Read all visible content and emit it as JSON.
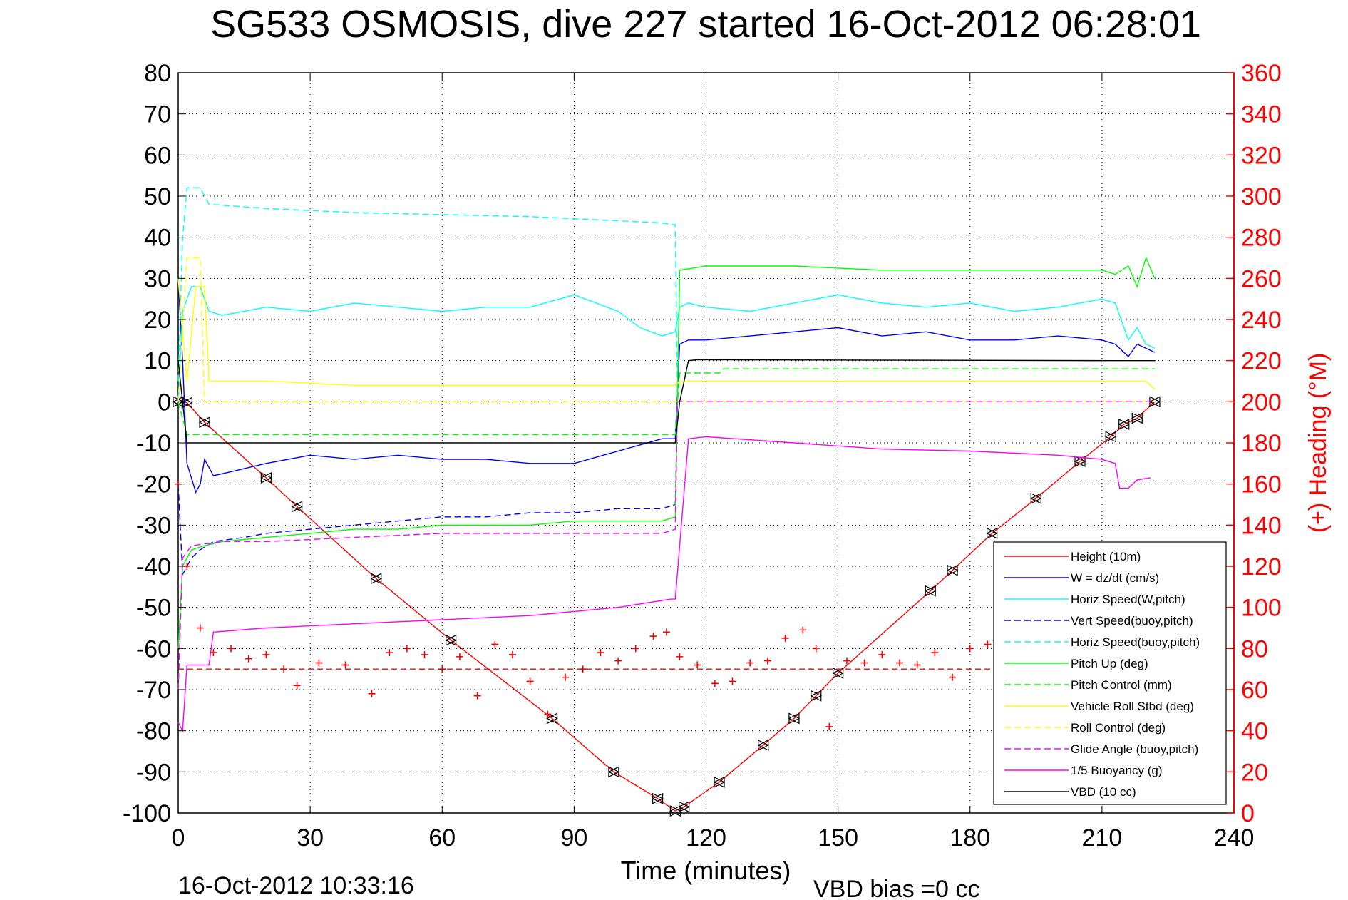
{
  "chart_data": {
    "type": "line",
    "title": "SG533 OSMOSIS, dive 227 started 16-Oct-2012 06:28:01",
    "xlabel": "Time (minutes)",
    "ylabel": "",
    "y2label": "(+) Heading (°M)",
    "timestamp": "16-Oct-2012 10:33:16",
    "footer_note": "VBD bias =0 cc",
    "xlim": [
      0,
      240
    ],
    "ylim": [
      -100,
      80
    ],
    "y2lim": [
      0,
      360
    ],
    "grid": true,
    "legend_position": "bottom-right",
    "x_ticks": [
      0,
      30,
      60,
      90,
      120,
      150,
      180,
      210,
      240
    ],
    "y_ticks": [
      80,
      70,
      60,
      50,
      40,
      30,
      20,
      10,
      0,
      -10,
      -20,
      -30,
      -40,
      -50,
      -60,
      -70,
      -80,
      -90,
      -100
    ],
    "y2_ticks": [
      360,
      340,
      320,
      300,
      280,
      260,
      240,
      220,
      200,
      180,
      160,
      140,
      120,
      100,
      80,
      60,
      40,
      20,
      0
    ],
    "series": [
      {
        "name": "Height (10m)",
        "color": "#ff0000",
        "style": "solid",
        "marker": "triangle",
        "x": [
          0,
          2,
          6,
          20,
          27,
          45,
          62,
          85,
          99,
          109,
          113,
          115,
          123,
          133,
          140,
          145,
          150,
          171,
          176,
          185,
          195,
          205,
          212,
          215,
          218,
          222
        ],
        "y": [
          0,
          -0.2,
          -5,
          -18.5,
          -25.5,
          -43,
          -58,
          -77,
          -90,
          -96.5,
          -99.5,
          -98.5,
          -92.5,
          -83.5,
          -77,
          -71.5,
          -66,
          -46,
          -41,
          -32,
          -23.5,
          -14.5,
          -8.5,
          -5.5,
          -4,
          0
        ]
      },
      {
        "name": "W = dz/dt (cm/s)",
        "color": "#0000ff",
        "style": "solid",
        "x": [
          0,
          1,
          2,
          4,
          5,
          6,
          8,
          12,
          20,
          30,
          40,
          50,
          60,
          70,
          80,
          90,
          100,
          110,
          113,
          114,
          116,
          120,
          130,
          140,
          150,
          160,
          170,
          180,
          190,
          200,
          210,
          213,
          216,
          218,
          220,
          222
        ],
        "y": [
          30,
          10,
          -15,
          -22,
          -20,
          -14,
          -18,
          -17,
          -15,
          -13,
          -14,
          -13,
          -14,
          -14,
          -15,
          -15,
          -12,
          -9,
          -9,
          14,
          15,
          15,
          16,
          17,
          18,
          16,
          17,
          15,
          15,
          16,
          15,
          14,
          11,
          14,
          13,
          12
        ]
      },
      {
        "name": "Horiz Speed(W,pitch)",
        "color": "#00ffff",
        "style": "solid",
        "x": [
          0,
          1,
          3,
          5,
          7,
          10,
          20,
          30,
          40,
          50,
          60,
          70,
          80,
          90,
          100,
          105,
          110,
          113,
          114,
          116,
          120,
          130,
          140,
          150,
          160,
          170,
          180,
          190,
          200,
          210,
          213,
          216,
          218,
          220,
          222
        ],
        "y": [
          0,
          22,
          28,
          28,
          22,
          21,
          23,
          22,
          24,
          23,
          22,
          23,
          23,
          26,
          22,
          18,
          16,
          17,
          23,
          24,
          23,
          22,
          24,
          26,
          24,
          23,
          24,
          22,
          23,
          25,
          24,
          15,
          18,
          14,
          13
        ]
      },
      {
        "name": "Vert Speed(buoy,pitch)",
        "color": "#0000ff",
        "style": "dashed",
        "x": [
          0,
          1,
          3,
          5,
          8,
          15,
          20,
          30,
          40,
          50,
          60,
          70,
          80,
          90,
          100,
          110,
          113,
          113.5
        ],
        "y": [
          -20,
          -42,
          -38,
          -36,
          -34,
          -33,
          -32,
          -31,
          -30,
          -29,
          -28,
          -28,
          -27,
          -27,
          -26,
          -26,
          -25,
          0
        ]
      },
      {
        "name": "Horiz Speed(buoy,pitch)",
        "color": "#00ffff",
        "style": "dashed",
        "x": [
          0,
          1,
          2,
          5,
          6,
          7,
          20,
          40,
          60,
          80,
          100,
          110,
          113,
          113.5
        ],
        "y": [
          5,
          40,
          52,
          52,
          50,
          48,
          47,
          46,
          45.5,
          45,
          44,
          43.5,
          43,
          0
        ]
      },
      {
        "name": "Pitch Up (deg)",
        "color": "#00ff00",
        "style": "solid",
        "x": [
          0,
          1,
          3,
          6,
          10,
          20,
          30,
          40,
          50,
          60,
          70,
          80,
          90,
          100,
          110,
          113,
          114,
          120,
          130,
          140,
          150,
          160,
          170,
          180,
          190,
          200,
          210,
          213,
          216,
          218,
          220,
          222
        ],
        "y": [
          -60,
          -40,
          -36,
          -35,
          -34,
          -33,
          -32,
          -31,
          -31,
          -30,
          -30,
          -30,
          -29,
          -29,
          -29,
          -28,
          32,
          33,
          33,
          33,
          32.5,
          32,
          32,
          32,
          32,
          32,
          32,
          31,
          33,
          28,
          35,
          30
        ]
      },
      {
        "name": "Pitch Control (mm)",
        "color": "#00ff00",
        "style": "dashed",
        "x": [
          0,
          2,
          113,
          114,
          123,
          124,
          222
        ],
        "y": [
          0,
          -8,
          -8,
          7,
          7,
          8,
          8
        ]
      },
      {
        "name": "Vehicle Roll Stbd (deg)",
        "color": "#ffff00",
        "style": "solid",
        "x": [
          0,
          2,
          4,
          6,
          7,
          20,
          40,
          60,
          80,
          100,
          110,
          113,
          114,
          120,
          140,
          160,
          180,
          200,
          210,
          213,
          216,
          220,
          222
        ],
        "y": [
          30,
          5,
          28,
          28,
          5,
          5,
          4,
          4,
          4,
          4,
          4,
          4,
          5,
          5,
          5,
          5,
          5,
          5,
          5,
          5,
          5,
          5,
          3
        ]
      },
      {
        "name": "Roll Control (deg)",
        "color": "#ffff00",
        "style": "dashed",
        "x": [
          0,
          2,
          5,
          6,
          114,
          222
        ],
        "y": [
          0,
          35,
          35,
          0,
          0,
          0
        ]
      },
      {
        "name": "Glide Angle (buoy,pitch)",
        "color": "#ff00ff",
        "style": "dashed",
        "x": [
          0,
          1,
          3,
          10,
          20,
          40,
          60,
          80,
          100,
          110,
          113,
          113.5,
          222
        ],
        "y": [
          -70,
          -38,
          -35,
          -34,
          -34,
          -33,
          -32,
          -32,
          -32,
          -32,
          -31,
          0,
          0
        ]
      },
      {
        "name": "1/5 Buoyancy (g)",
        "color": "#ff00ff",
        "style": "solid",
        "x": [
          0,
          1,
          2,
          7,
          8,
          20,
          40,
          60,
          80,
          100,
          112,
          113,
          116,
          120,
          140,
          160,
          180,
          200,
          210,
          213,
          214,
          216,
          218,
          221
        ],
        "y": [
          -78,
          -80,
          -64,
          -64,
          -56,
          -55,
          -54,
          -53,
          -52,
          -50,
          -48,
          -48,
          -9,
          -8.5,
          -10,
          -11.5,
          -12,
          -13,
          -14,
          -15,
          -21,
          -21,
          -19,
          -18.5
        ]
      },
      {
        "name": "VBD (10 cc)",
        "color": "#000000",
        "style": "solid",
        "x": [
          0,
          2,
          113,
          114,
          116,
          118,
          213,
          222
        ],
        "y": [
          10,
          -10,
          -10,
          0,
          10,
          10.2,
          10,
          10
        ]
      },
      {
        "name": "Heading (°M)",
        "color": "#ff0000",
        "style": "plus-markers",
        "axis": "right",
        "reference_line": 70,
        "x": [
          0,
          2,
          5,
          8,
          12,
          16,
          20,
          24,
          27,
          32,
          38,
          44,
          48,
          52,
          56,
          60,
          64,
          68,
          72,
          76,
          80,
          84,
          88,
          92,
          96,
          100,
          104,
          108,
          111,
          114,
          118,
          122,
          126,
          130,
          134,
          138,
          142,
          145,
          148,
          152,
          156,
          160,
          164,
          168,
          172,
          176,
          180,
          184,
          186
        ],
        "y": [
          160,
          120,
          90,
          78,
          80,
          75,
          77,
          70,
          62,
          73,
          72,
          58,
          78,
          80,
          77,
          70,
          76,
          57,
          82,
          77,
          64,
          48,
          66,
          70,
          78,
          74,
          80,
          86,
          88,
          76,
          72,
          63,
          64,
          73,
          74,
          85,
          89,
          80,
          42,
          74,
          73,
          77,
          73,
          72,
          78,
          66,
          80,
          82,
          84
        ]
      }
    ]
  }
}
